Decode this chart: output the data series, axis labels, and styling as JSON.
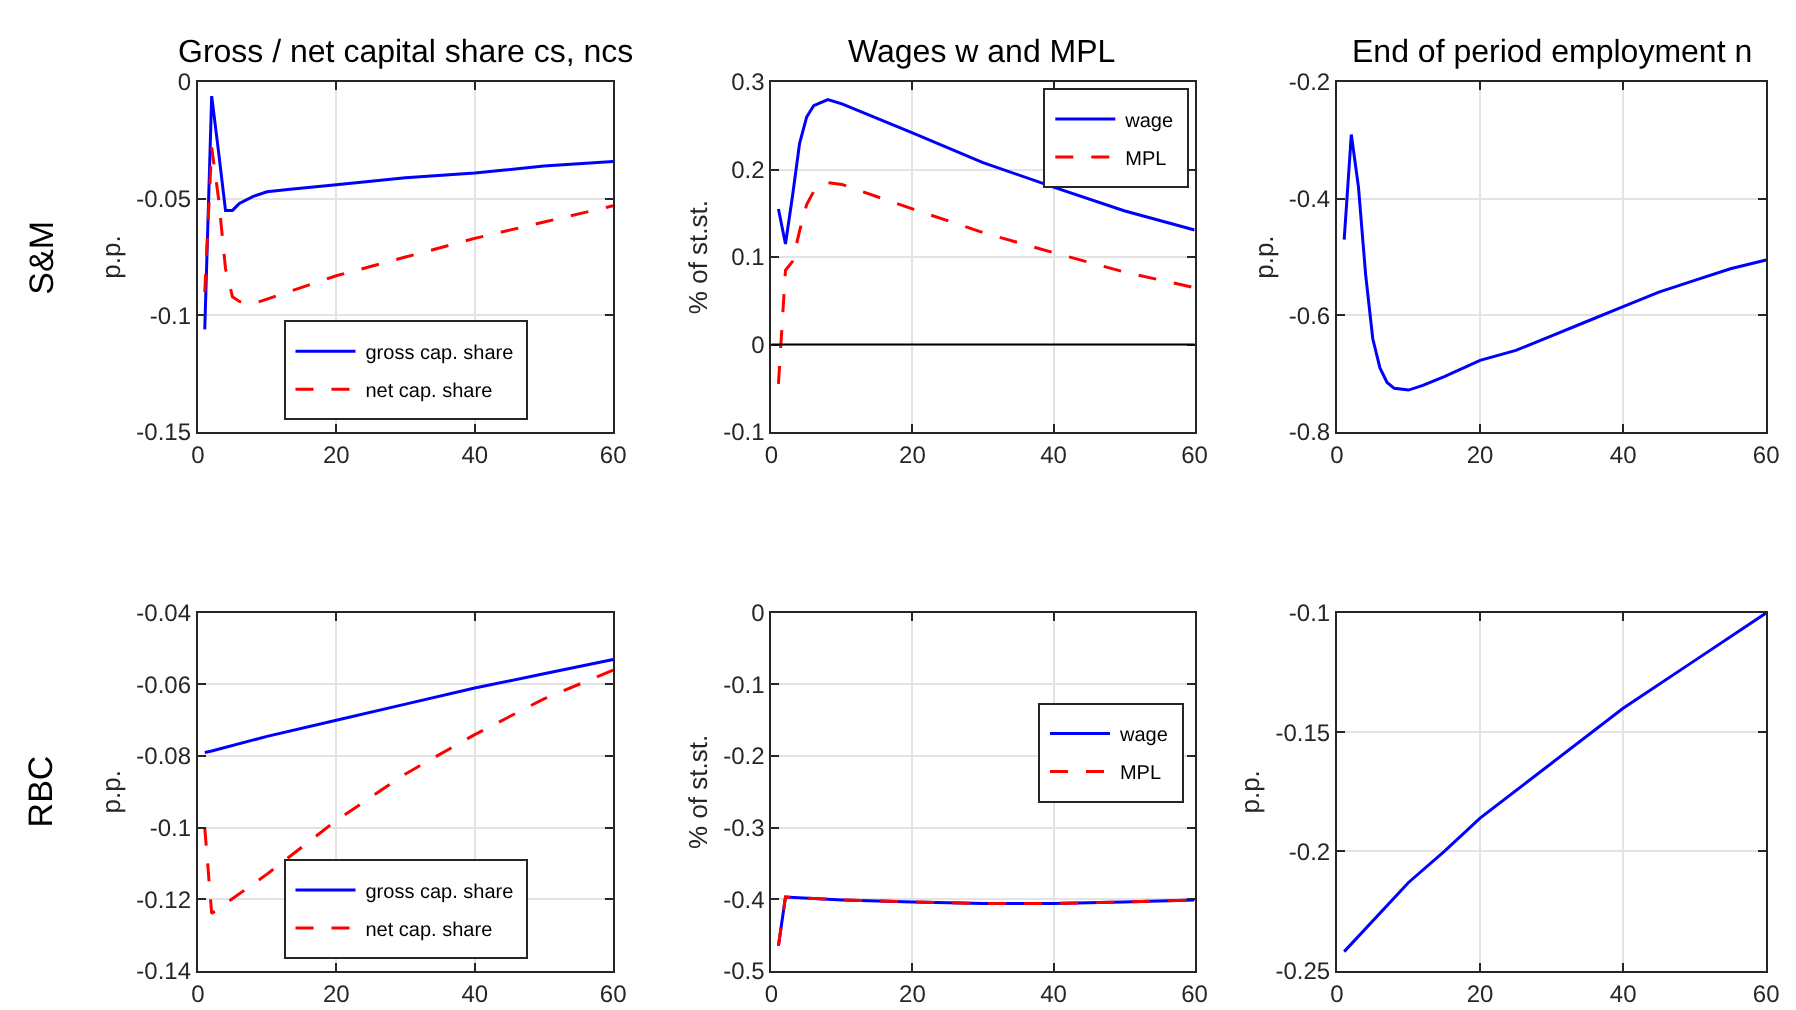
{
  "chart_data": [
    {
      "type": "line",
      "title": "Gross / net capital share cs, ncs",
      "ylabel": "p.p.",
      "annotations": [
        "S&M"
      ],
      "xlim": [
        0,
        60
      ],
      "xticks": [
        0,
        20,
        40,
        60
      ],
      "ylim": [
        -0.15,
        0
      ],
      "yticks": [
        -0.15,
        -0.1,
        -0.05,
        0
      ],
      "grid": true,
      "legend": "bottom",
      "x": [
        1,
        2,
        3,
        4,
        5,
        6,
        8,
        10,
        13,
        20,
        30,
        40,
        50,
        60
      ],
      "series": [
        {
          "name": "gross cap. share",
          "color": "#0000ff",
          "line_style": "solid",
          "values": [
            -0.106,
            -0.006,
            -0.03,
            -0.055,
            -0.055,
            -0.052,
            -0.049,
            -0.047,
            -0.046,
            -0.044,
            -0.041,
            -0.039,
            -0.036,
            -0.034
          ]
        },
        {
          "name": "net cap. share",
          "color": "#ff0000",
          "line_style": "dashed",
          "values": [
            -0.09,
            -0.028,
            -0.05,
            -0.08,
            -0.092,
            -0.094,
            -0.095,
            -0.093,
            -0.09,
            -0.083,
            -0.075,
            -0.067,
            -0.06,
            -0.053
          ]
        }
      ]
    },
    {
      "type": "line",
      "title": "Wages w and MPL",
      "ylabel": "% of st.st.",
      "xlim": [
        0,
        60
      ],
      "xticks": [
        0,
        20,
        40,
        60
      ],
      "ylim": [
        -0.1,
        0.3
      ],
      "yticks": [
        -0.1,
        0,
        0.1,
        0.2,
        0.3
      ],
      "grid": true,
      "legend": "top right",
      "ref_lines": [
        {
          "axis": "y",
          "value": 0,
          "color": "#000000"
        }
      ],
      "x": [
        1,
        2,
        3,
        4,
        5,
        6,
        8,
        10,
        20,
        30,
        40,
        50,
        60
      ],
      "series": [
        {
          "name": "wage",
          "color": "#0000ff",
          "line_style": "solid",
          "values": [
            0.155,
            0.115,
            0.17,
            0.23,
            0.26,
            0.273,
            0.28,
            0.275,
            0.242,
            0.208,
            0.18,
            0.153,
            0.131
          ]
        },
        {
          "name": "MPL",
          "color": "#ff0000",
          "line_style": "dashed",
          "values": [
            -0.045,
            0.085,
            0.095,
            0.13,
            0.16,
            0.175,
            0.185,
            0.183,
            0.155,
            0.128,
            0.105,
            0.083,
            0.065
          ]
        }
      ]
    },
    {
      "type": "line",
      "title": "End of period employment n",
      "ylabel": "p.p.",
      "xlim": [
        0,
        60
      ],
      "xticks": [
        0,
        20,
        40,
        60
      ],
      "ylim": [
        -0.8,
        -0.2
      ],
      "yticks": [
        -0.8,
        -0.6,
        -0.4,
        -0.2
      ],
      "grid": true,
      "x": [
        1,
        2,
        3,
        4,
        5,
        6,
        7,
        8,
        10,
        12,
        15,
        20,
        25,
        30,
        35,
        40,
        45,
        50,
        55,
        60
      ],
      "series": [
        {
          "color": "#0000ff",
          "line_style": "solid",
          "values": [
            -0.47,
            -0.29,
            -0.38,
            -0.53,
            -0.64,
            -0.69,
            -0.715,
            -0.725,
            -0.728,
            -0.72,
            -0.705,
            -0.677,
            -0.66,
            -0.635,
            -0.61,
            -0.585,
            -0.56,
            -0.54,
            -0.52,
            -0.505
          ]
        }
      ]
    },
    {
      "type": "line",
      "ylabel": "p.p.",
      "annotations": [
        "RBC"
      ],
      "xlim": [
        0,
        60
      ],
      "xticks": [
        0,
        20,
        40,
        60
      ],
      "ylim": [
        -0.14,
        -0.04
      ],
      "yticks": [
        -0.14,
        -0.12,
        -0.1,
        -0.08,
        -0.06,
        -0.04
      ],
      "grid": true,
      "legend": "bottom",
      "x": [
        1,
        2,
        10,
        20,
        30,
        40,
        50,
        60
      ],
      "series": [
        {
          "name": "gross cap. share",
          "color": "#0000ff",
          "line_style": "solid",
          "values": [
            -0.079,
            -0.0786,
            -0.0745,
            -0.07,
            -0.0655,
            -0.061,
            -0.057,
            -0.053
          ]
        },
        {
          "name": "net cap. share",
          "color": "#ff0000",
          "line_style": "dashed",
          "values": [
            -0.1,
            -0.124,
            -0.113,
            -0.098,
            -0.085,
            -0.074,
            -0.064,
            -0.056
          ]
        }
      ]
    },
    {
      "type": "line",
      "ylabel": "% of st.st.",
      "xlim": [
        0,
        60
      ],
      "xticks": [
        0,
        20,
        40,
        60
      ],
      "ylim": [
        -0.5,
        0
      ],
      "yticks": [
        -0.5,
        -0.4,
        -0.3,
        -0.2,
        -0.1,
        0
      ],
      "grid": true,
      "legend": "right",
      "x": [
        1,
        2,
        10,
        20,
        30,
        40,
        50,
        60
      ],
      "series": [
        {
          "name": "wage",
          "color": "#0000ff",
          "line_style": "solid",
          "values": [
            -0.465,
            -0.397,
            -0.401,
            -0.404,
            -0.406,
            -0.406,
            -0.404,
            -0.401
          ]
        },
        {
          "name": "MPL",
          "color": "#ff0000",
          "line_style": "dashed",
          "values": [
            -0.465,
            -0.397,
            -0.401,
            -0.404,
            -0.406,
            -0.406,
            -0.404,
            -0.401
          ]
        }
      ]
    },
    {
      "type": "line",
      "ylabel": "p.p.",
      "xlim": [
        0,
        60
      ],
      "xticks": [
        0,
        20,
        40,
        60
      ],
      "ylim": [
        -0.25,
        -0.1
      ],
      "yticks": [
        -0.25,
        -0.2,
        -0.15,
        -0.1
      ],
      "grid": true,
      "x": [
        1,
        10,
        15,
        20,
        30,
        40,
        50,
        60
      ],
      "series": [
        {
          "color": "#0000ff",
          "line_style": "solid",
          "values": [
            -0.242,
            -0.213,
            -0.2,
            -0.186,
            -0.163,
            -0.14,
            -0.12,
            -0.1
          ]
        }
      ]
    }
  ]
}
